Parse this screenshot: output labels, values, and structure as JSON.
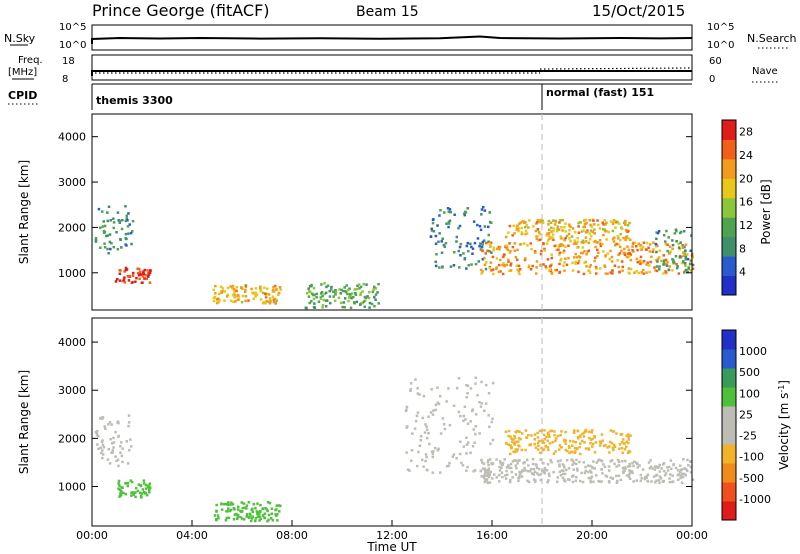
{
  "header": {
    "station": "Prince George (fitACF)",
    "beam": "Beam 15",
    "date": "15/Oct/2015"
  },
  "status_panels": {
    "nsky_label": "N.Sky",
    "nsky_ticks": [
      "10^5",
      "10^0"
    ],
    "nsearch_label": "N.Search",
    "nsearch_ticks": [
      "10^5",
      "10^0"
    ],
    "freq_label": "Freq.",
    "freq_unit": "[MHz]",
    "freq_ticks": [
      "18",
      "8"
    ],
    "nave_label": "Nave",
    "nave_ticks": [
      "60",
      "0"
    ],
    "cpid_label": "CPID",
    "cpid_modes": [
      {
        "name": "themis 3300",
        "start_hour": 0
      },
      {
        "name": "normal (fast) 151",
        "start_hour": 18
      }
    ]
  },
  "colors": {
    "power_scale": [
      "#2030c8",
      "#2a5ad0",
      "#3f8f6a",
      "#4fa350",
      "#8cc63a",
      "#e8c81a",
      "#f29b1c",
      "#f0601a",
      "#e11a1a"
    ],
    "velocity_scale": [
      "#e11a1a",
      "#f0501a",
      "#f08a1c",
      "#f2b22a",
      "#bdbdb4",
      "#bdbdb4",
      "#4fc03a",
      "#3a9a5a",
      "#2a5ad0",
      "#2030c8"
    ]
  },
  "chart_data": [
    {
      "type": "heatmap",
      "name": "power",
      "x": [
        0,
        24
      ],
      "xlim": [
        0,
        24
      ],
      "ylim": [
        180,
        4500
      ],
      "ylabel": "Slant Range [km]",
      "yticks": [
        "1000",
        "2000",
        "3000",
        "4000"
      ],
      "colorbar_label": "Power [dB]",
      "colorbar_ticks": [
        "4",
        "8",
        "12",
        "16",
        "20",
        "24",
        "28"
      ],
      "colorbar_range": [
        0,
        30
      ],
      "echo_regions": [
        {
          "t0": 0.1,
          "t1": 1.6,
          "r0": 1450,
          "r1": 2500,
          "value": 9
        },
        {
          "t0": 0.9,
          "t1": 2.3,
          "r0": 800,
          "r1": 1150,
          "value": 27
        },
        {
          "t0": 4.8,
          "t1": 7.5,
          "r0": 350,
          "r1": 750,
          "value": 20
        },
        {
          "t0": 8.5,
          "t1": 11.5,
          "r0": 250,
          "r1": 800,
          "value": 12
        },
        {
          "t0": 13.5,
          "t1": 16.0,
          "r0": 1100,
          "r1": 2500,
          "value": 8
        },
        {
          "t0": 15.5,
          "t1": 24.0,
          "r0": 1000,
          "r1": 1700,
          "value": 22
        },
        {
          "t0": 16.5,
          "t1": 21.5,
          "r0": 1700,
          "r1": 2200,
          "value": 20
        },
        {
          "t0": 22.5,
          "t1": 24.0,
          "r0": 1000,
          "r1": 2000,
          "value": 10
        }
      ]
    },
    {
      "type": "heatmap",
      "name": "velocity",
      "x": [
        0,
        24
      ],
      "xlim": [
        0,
        24
      ],
      "ylim": [
        180,
        4500
      ],
      "xlabel": "Time UT",
      "xticks": [
        "00:00",
        "04:00",
        "08:00",
        "12:00",
        "16:00",
        "20:00",
        "00:00"
      ],
      "ylabel": "Slant Range [km]",
      "yticks": [
        "1000",
        "2000",
        "3000",
        "4000"
      ],
      "colorbar_label": "Velocity [m s",
      "colorbar_label_sup": "-1",
      "colorbar_label_close": "]",
      "colorbar_ticks": [
        "1000",
        "500",
        "100",
        "25",
        "-25",
        "-100",
        "-500",
        "-1000"
      ],
      "echo_regions": [
        {
          "t0": 0.1,
          "t1": 1.6,
          "r0": 1450,
          "r1": 2500,
          "value": 0
        },
        {
          "t0": 0.9,
          "t1": 2.3,
          "r0": 800,
          "r1": 1150,
          "value": 80
        },
        {
          "t0": 4.8,
          "t1": 7.5,
          "r0": 300,
          "r1": 700,
          "value": 90
        },
        {
          "t0": 12.5,
          "t1": 16.0,
          "r0": 1300,
          "r1": 3300,
          "value": 0
        },
        {
          "t0": 15.5,
          "t1": 24.0,
          "r0": 1100,
          "r1": 1600,
          "value": 0
        },
        {
          "t0": 16.5,
          "t1": 21.5,
          "r0": 1700,
          "r1": 2200,
          "value": -300
        }
      ]
    }
  ]
}
